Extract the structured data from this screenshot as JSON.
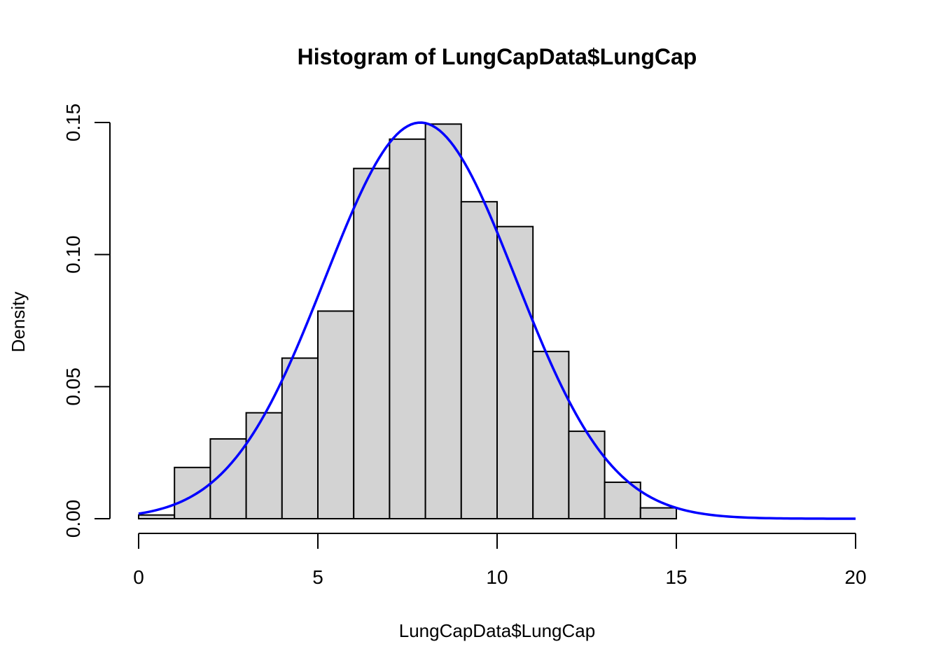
{
  "chart_data": {
    "type": "bar",
    "title": "Histogram of LungCapData$LungCap",
    "xlabel": "LungCapData$LungCap",
    "ylabel": "Density",
    "xlim": [
      0,
      20
    ],
    "ylim": [
      0,
      0.15
    ],
    "x_ticks": [
      "0",
      "5",
      "10",
      "15",
      "20"
    ],
    "y_ticks": [
      "0.00",
      "0.05",
      "0.10",
      "0.15"
    ],
    "bins": [
      {
        "x0": 0,
        "x1": 1,
        "density": 0.0014
      },
      {
        "x0": 1,
        "x1": 2,
        "density": 0.0194
      },
      {
        "x0": 2,
        "x1": 3,
        "density": 0.0302
      },
      {
        "x0": 3,
        "x1": 4,
        "density": 0.0401
      },
      {
        "x0": 4,
        "x1": 5,
        "density": 0.0608
      },
      {
        "x0": 5,
        "x1": 6,
        "density": 0.0786
      },
      {
        "x0": 6,
        "x1": 7,
        "density": 0.1326
      },
      {
        "x0": 7,
        "x1": 8,
        "density": 0.1437
      },
      {
        "x0": 8,
        "x1": 9,
        "density": 0.1494
      },
      {
        "x0": 9,
        "x1": 10,
        "density": 0.12
      },
      {
        "x0": 10,
        "x1": 11,
        "density": 0.1106
      },
      {
        "x0": 11,
        "x1": 12,
        "density": 0.0633
      },
      {
        "x0": 12,
        "x1": 13,
        "density": 0.0331
      },
      {
        "x0": 13,
        "x1": 14,
        "density": 0.0138
      },
      {
        "x0": 14,
        "x1": 15,
        "density": 0.0041
      }
    ],
    "curve": {
      "type": "normal-density",
      "mean": 7.86,
      "sd": 2.66,
      "x_from": 0,
      "x_to": 20,
      "color": "#0000ff"
    },
    "grid": false,
    "bar_color": "#d3d3d3"
  }
}
